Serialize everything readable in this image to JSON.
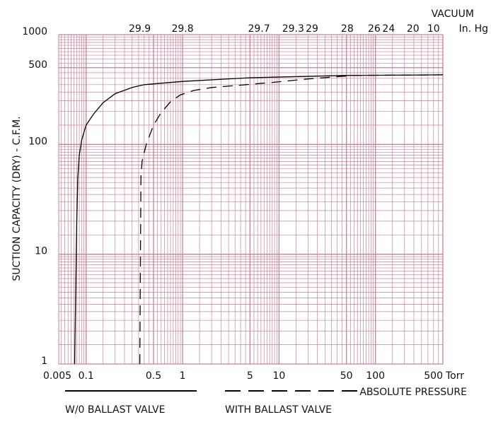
{
  "chart_data": {
    "type": "line",
    "y_label": "SUCTION CAPACITY (DRY) - C.F.M.",
    "x_label": "ABSOLUTE PRESSURE",
    "x_unit": "Torr",
    "x_start_label": "0.005",
    "x2_label": "VACUUM",
    "x2_unit": "In. Hg",
    "log_x": true,
    "log_y": true,
    "grid": true,
    "minor_grid": true,
    "grid_color": "#c9829c",
    "xlim": [
      0.052,
      500
    ],
    "ylim": [
      1,
      1000
    ],
    "xticks": [
      0.1,
      0.5,
      1,
      5,
      10,
      50,
      100,
      500
    ],
    "yticks": [
      1,
      10,
      100,
      500,
      1000
    ],
    "x2ticks": [
      {
        "value": 0.36,
        "label": "29.9"
      },
      {
        "value": 1.0,
        "label": "29.8"
      },
      {
        "value": 6.2,
        "label": "29.7"
      },
      {
        "value": 14,
        "label": "29.3"
      },
      {
        "value": 22,
        "label": "29"
      },
      {
        "value": 51,
        "label": "28"
      },
      {
        "value": 97,
        "label": "26"
      },
      {
        "value": 137,
        "label": "24"
      },
      {
        "value": 245,
        "label": "20"
      },
      {
        "value": 400,
        "label": "10"
      }
    ],
    "series": [
      {
        "name": "W/0 BALLAST VALVE",
        "color": "#000000",
        "dash": false,
        "x": [
          0.076,
          0.08,
          0.082,
          0.085,
          0.09,
          0.1,
          0.12,
          0.15,
          0.2,
          0.3,
          0.4,
          1,
          5,
          50,
          500
        ],
        "values": [
          1,
          20,
          50,
          80,
          110,
          150,
          190,
          240,
          290,
          330,
          350,
          375,
          405,
          425,
          430
        ]
      },
      {
        "name": "WITH BALLAST VALVE",
        "color": "#000000",
        "dash": true,
        "x": [
          0.36,
          0.37,
          0.38,
          0.42,
          0.5,
          0.6,
          0.75,
          0.95,
          1.3,
          2,
          8,
          20,
          60,
          500
        ],
        "values": [
          1,
          50,
          70,
          100,
          150,
          195,
          245,
          283,
          310,
          330,
          365,
          395,
          425,
          430
        ]
      }
    ]
  }
}
